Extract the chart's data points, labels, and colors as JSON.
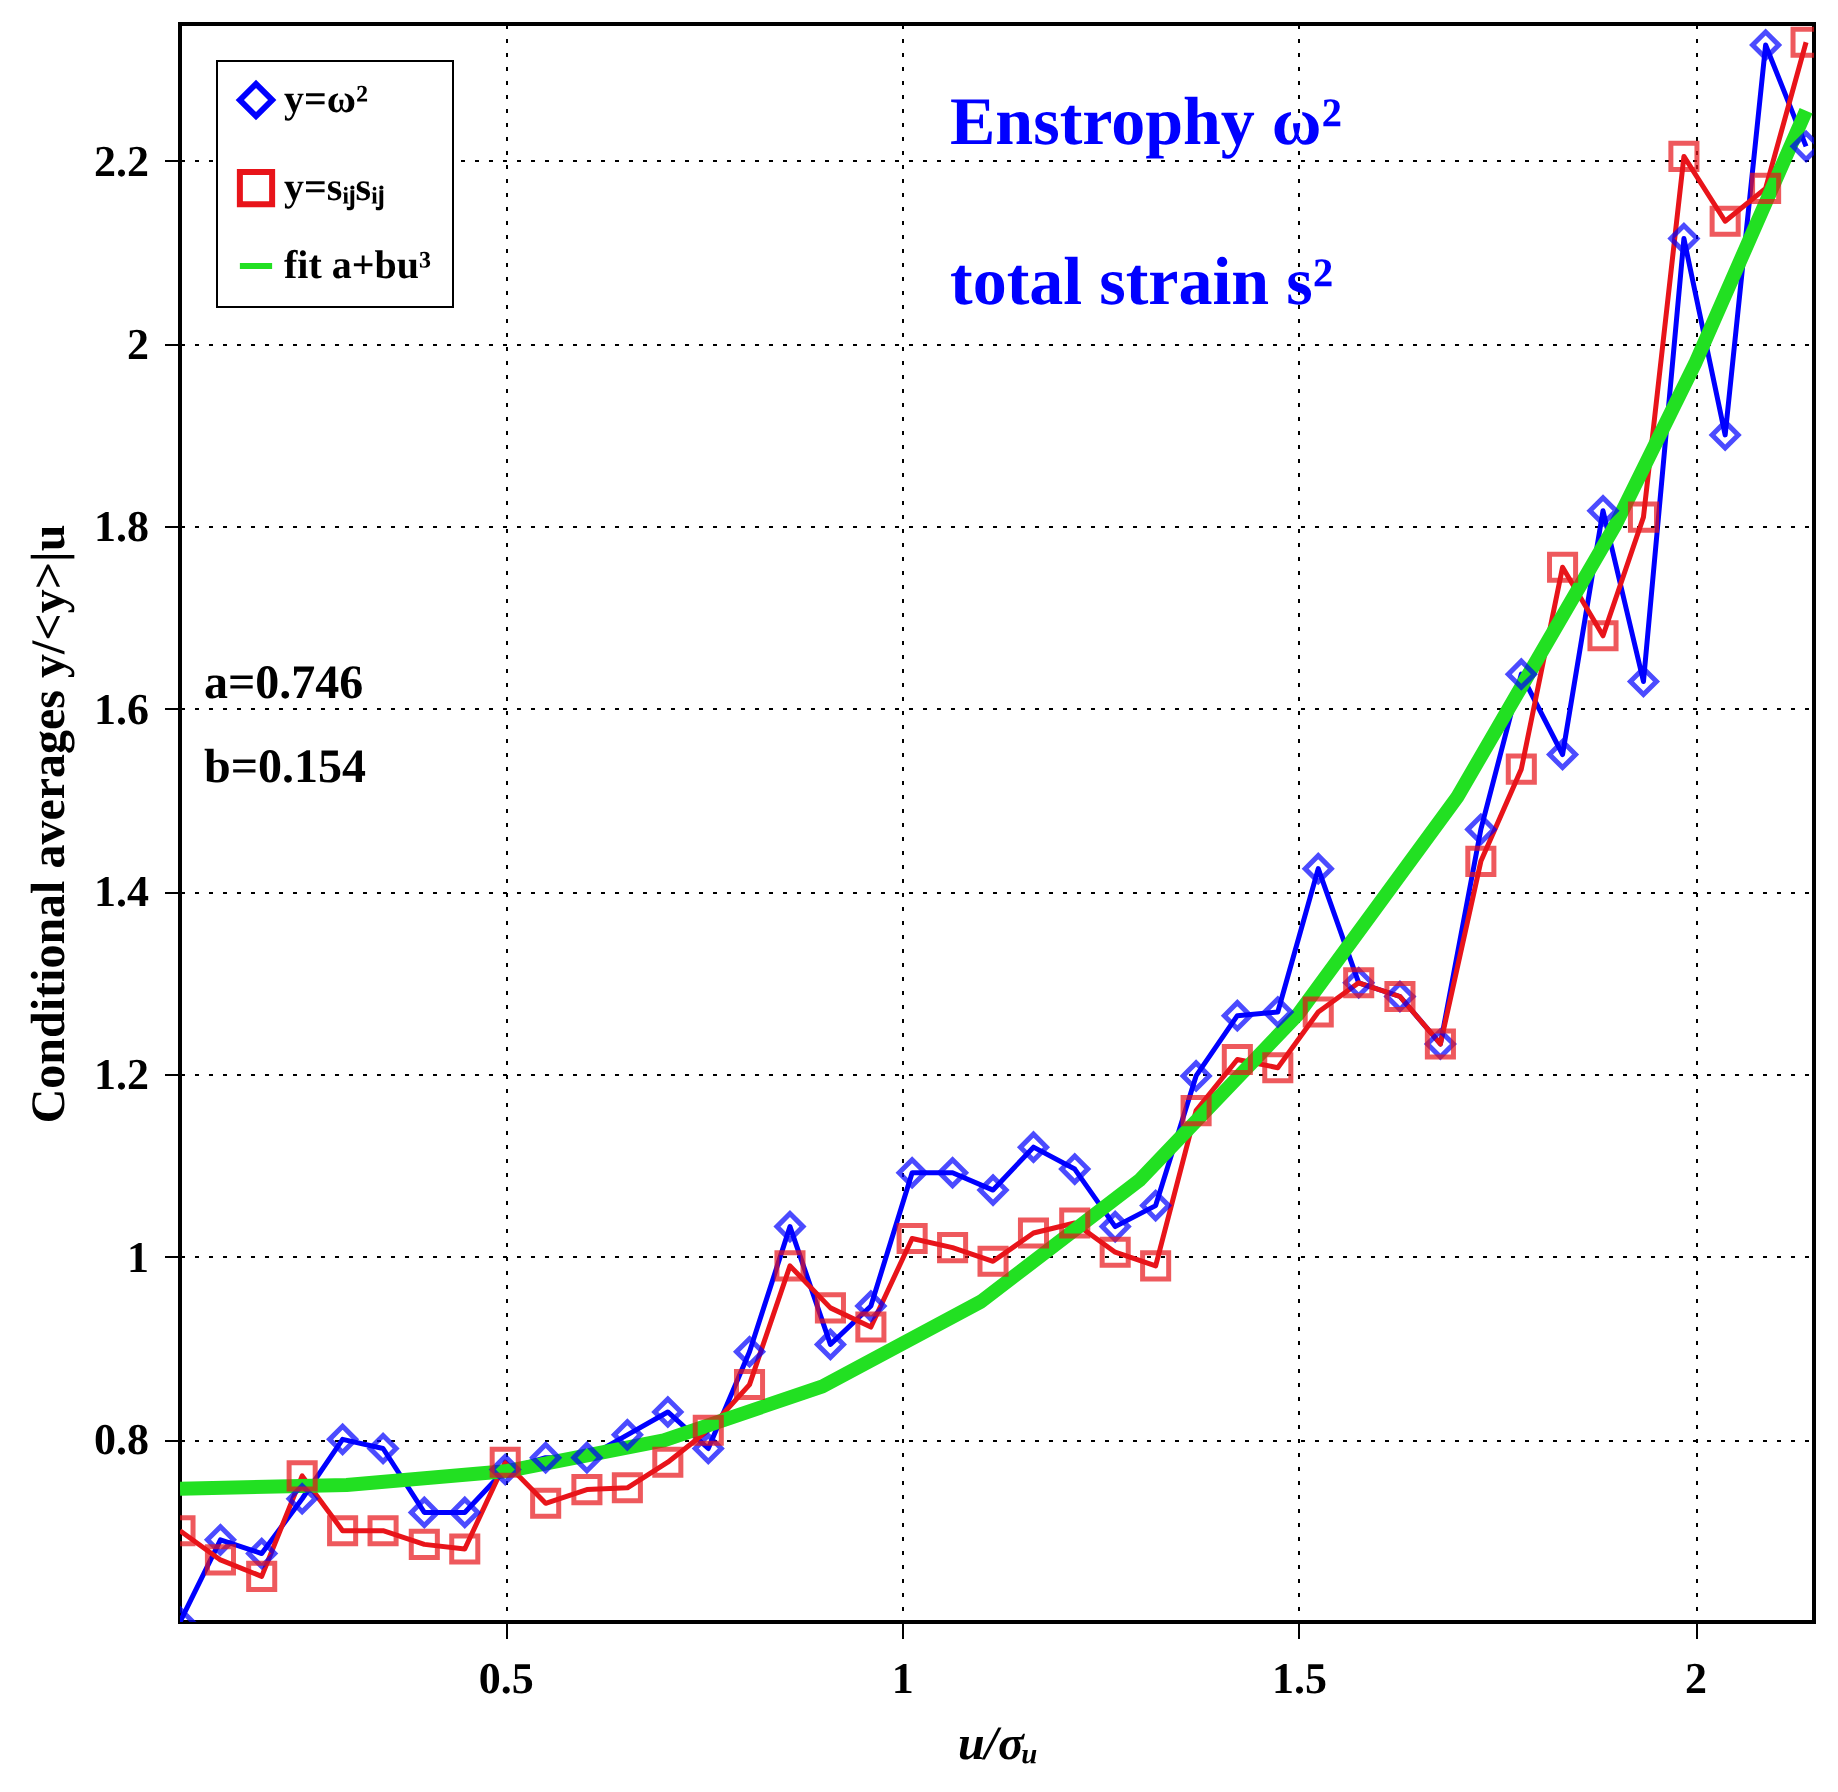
{
  "chart_data": {
    "type": "line",
    "xlabel": "u/σᵤ",
    "ylabel": "Conditional averages y/<y>|u",
    "x": [
      0.09,
      0.141,
      0.193,
      0.244,
      0.295,
      0.346,
      0.398,
      0.449,
      0.5,
      0.551,
      0.603,
      0.654,
      0.705,
      0.756,
      0.808,
      0.859,
      0.91,
      0.961,
      1.013,
      1.064,
      1.115,
      1.166,
      1.218,
      1.269,
      1.32,
      1.371,
      1.423,
      1.474,
      1.525,
      1.576,
      1.628,
      1.679,
      1.73,
      1.781,
      1.833,
      1.884,
      1.935,
      1.986,
      2.038,
      2.089,
      2.14
    ],
    "series": [
      {
        "name": "y=ω²",
        "color": "#0000ff",
        "marker": "diamond",
        "values": [
          0.6,
          0.69,
          0.675,
          0.735,
          0.8,
          0.79,
          0.72,
          0.72,
          0.767,
          0.78,
          0.78,
          0.805,
          0.83,
          0.79,
          0.896,
          1.033,
          0.904,
          0.946,
          1.092,
          1.092,
          1.073,
          1.12,
          1.096,
          1.033,
          1.056,
          1.198,
          1.264,
          1.268,
          1.425,
          1.3,
          1.285,
          1.233,
          1.468,
          1.638,
          1.55,
          1.817,
          1.63,
          2.115,
          1.9,
          2.327,
          2.216
        ]
      },
      {
        "name": "y=sᵢⱼsᵢⱼ",
        "color": "#e8141a",
        "marker": "square",
        "values": [
          0.7,
          0.668,
          0.65,
          0.76,
          0.7,
          0.7,
          0.685,
          0.68,
          0.775,
          0.73,
          0.745,
          0.747,
          0.775,
          0.81,
          0.86,
          0.99,
          0.944,
          0.923,
          1.02,
          1.01,
          0.995,
          1.026,
          1.037,
          1.005,
          0.99,
          1.16,
          1.216,
          1.207,
          1.268,
          1.3,
          1.285,
          1.233,
          1.433,
          1.534,
          1.755,
          1.68,
          1.81,
          2.205,
          2.134,
          2.17,
          2.33
        ]
      },
      {
        "name": "fit a+bu³",
        "color": "#22e022",
        "marker": "none",
        "x": [
          0.09,
          0.3,
          0.5,
          0.7,
          0.9,
          1.1,
          1.3,
          1.5,
          1.7,
          1.9,
          2.0,
          2.14
        ],
        "values": [
          0.746,
          0.75,
          0.765,
          0.799,
          0.858,
          0.951,
          1.084,
          1.266,
          1.503,
          1.802,
          1.978,
          2.255
        ]
      }
    ],
    "xlim": [
      0.09,
      2.15
    ],
    "ylim": [
      0.6,
      2.35
    ],
    "xticks": [
      0.5,
      1,
      1.5,
      2
    ],
    "yticks": [
      0.8,
      1,
      1.2,
      1.4,
      1.6,
      1.8,
      2,
      2.2
    ],
    "grid": true,
    "legend": "top left",
    "annotations": [
      "Enstrophy ω²",
      "total strain s²",
      "a=0.746",
      "b=0.154"
    ]
  }
}
